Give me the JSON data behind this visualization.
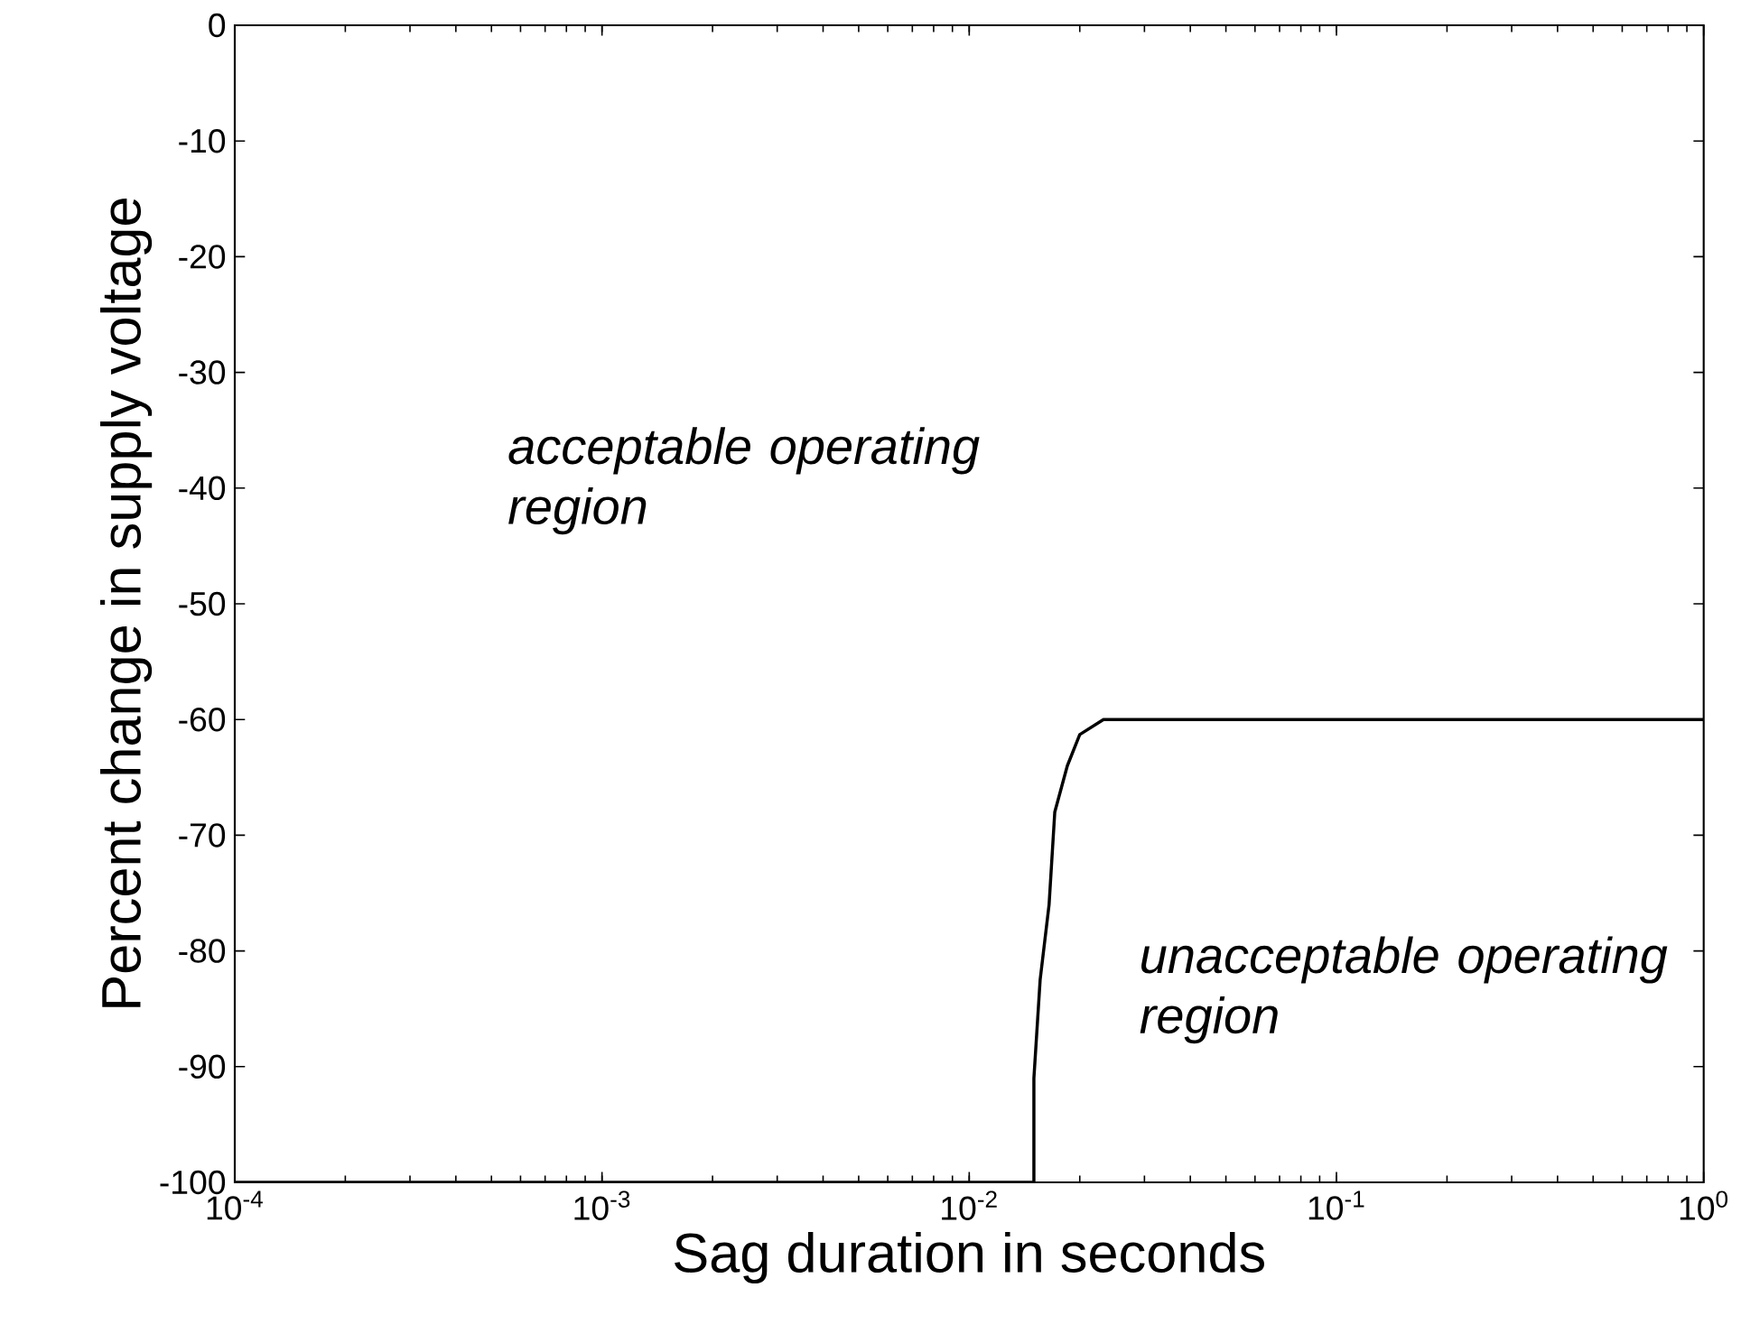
{
  "chart_data": {
    "type": "line",
    "xlabel": "Sag duration in seconds",
    "ylabel": "Percent change in supply voltage",
    "log": "x",
    "xlim": [
      0.0001,
      1
    ],
    "ylim": [
      -100,
      0
    ],
    "xticks": [
      {
        "value": 0.0001,
        "label": "10$^{-4}$"
      },
      {
        "value": 0.001,
        "label": "10$^{-3}$"
      },
      {
        "value": 0.01,
        "label": "10$^{-2}$"
      },
      {
        "value": 0.1,
        "label": "10$^{-1}$"
      },
      {
        "value": 1,
        "label": "10$^{0}$"
      }
    ],
    "yticks": [
      -100,
      -90,
      -80,
      -70,
      -60,
      -50,
      -40,
      -30,
      -20,
      -10,
      0
    ],
    "x": [
      0.0001,
      0.015,
      0.015,
      0.0156,
      0.0165,
      0.0171,
      0.0185,
      0.02,
      0.0232,
      1
    ],
    "series": [
      {
        "color": "#000000",
        "values": [
          -100,
          -100,
          -91,
          -82.5,
          -76,
          -68,
          -64,
          -61.3,
          -60,
          -60
        ]
      }
    ],
    "annotations": [
      "acceptable operating region",
      "unacceptable operating region"
    ]
  }
}
